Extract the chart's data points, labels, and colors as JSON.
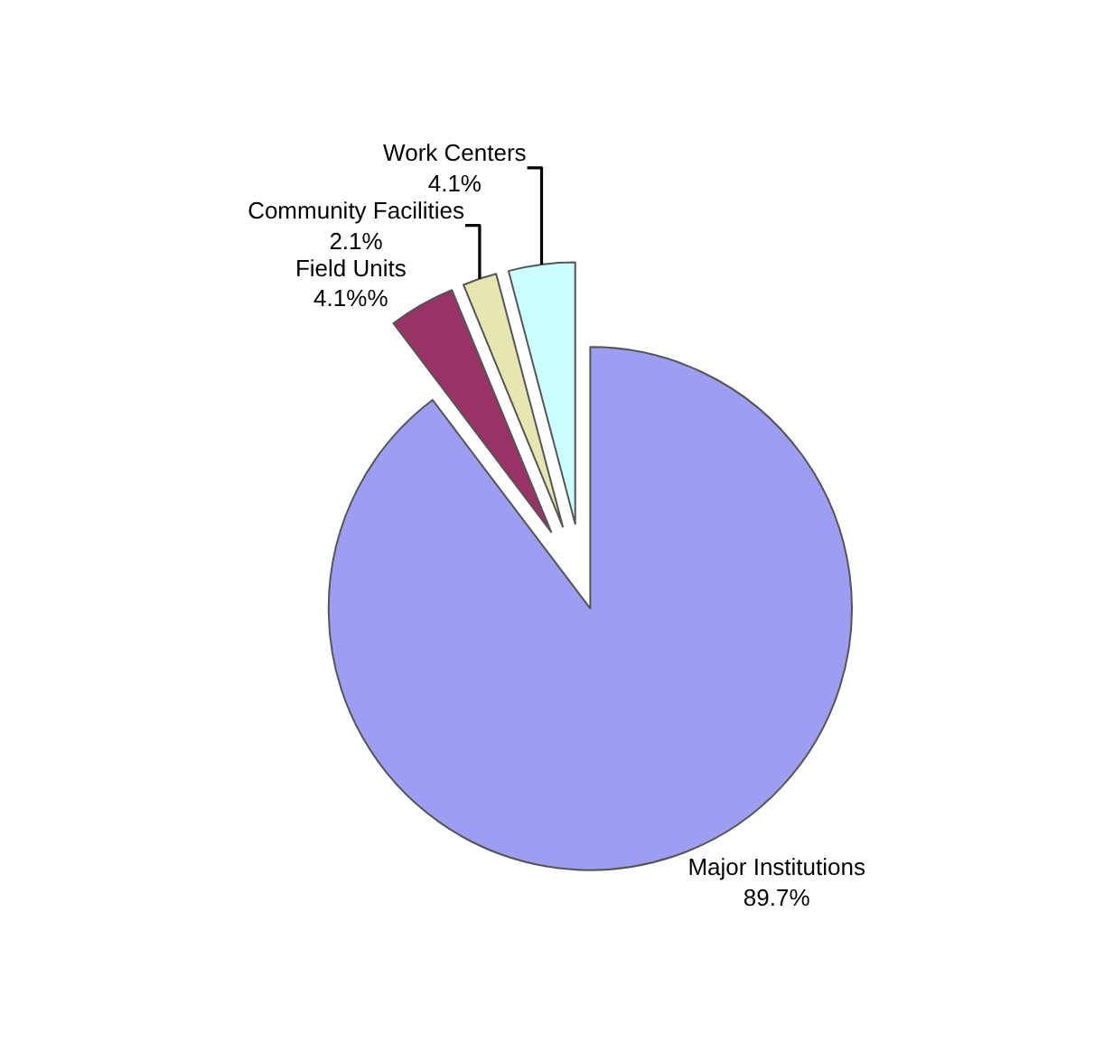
{
  "chart_data": {
    "type": "pie",
    "categories": [
      "Major Institutions",
      "Field Units",
      "Community Facilities",
      "Work Centers"
    ],
    "values": [
      89.7,
      4.1,
      2.1,
      4.1
    ],
    "value_labels": [
      "89.7%",
      "4.1%%",
      "2.1%",
      "4.1%"
    ],
    "colors": [
      "#9d9df2",
      "#993366",
      "#e6e6b3",
      "#ccffff"
    ],
    "legend": false
  }
}
